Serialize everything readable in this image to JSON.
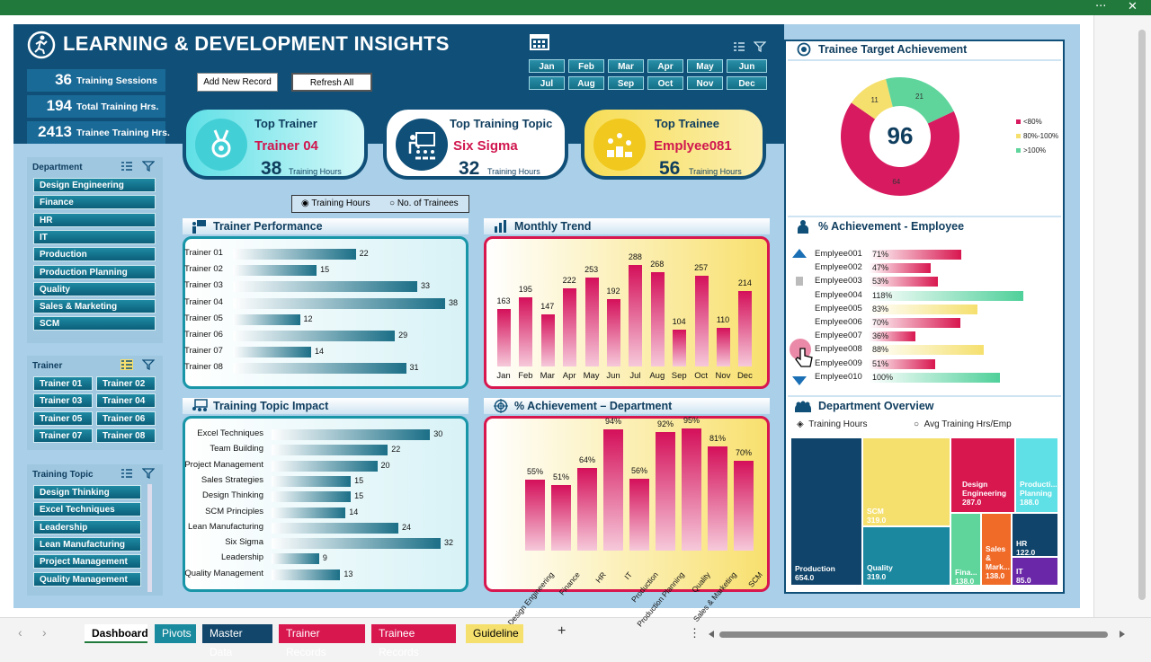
{
  "window": {
    "menu_dots": "···",
    "close": "✕"
  },
  "title": "LEARNING & DEVELOPMENT INSIGHTS",
  "kpis": [
    {
      "value": "36",
      "label": "Training Sessions"
    },
    {
      "value": "194",
      "label": "Total Training Hrs."
    },
    {
      "value": "2413",
      "label": "Trainee Training Hrs."
    }
  ],
  "buttons": {
    "add": "Add New Record",
    "refresh": "Refresh All"
  },
  "months": [
    "Jan",
    "Feb",
    "Mar",
    "Apr",
    "May",
    "Jun",
    "Jul",
    "Aug",
    "Sep",
    "Oct",
    "Nov",
    "Dec"
  ],
  "cards": {
    "trainer": {
      "title": "Top Trainer",
      "name": "Trainer 04",
      "value": "38",
      "unit": "Training Hours"
    },
    "topic": {
      "title": "Top Training Topic",
      "name": "Six Sigma",
      "value": "32",
      "unit": "Training Hours"
    },
    "trainee": {
      "title": "Top Trainee",
      "name": "Emplyee081",
      "value": "56",
      "unit": "Training Hours"
    }
  },
  "toggle": {
    "opt1": "Training Hours",
    "opt2": "No. of Trainees"
  },
  "slicers": {
    "department": {
      "title": "Department",
      "items": [
        "Design Engineering",
        "Finance",
        "HR",
        "IT",
        "Production",
        "Production Planning",
        "Quality",
        "Sales & Marketing",
        "SCM"
      ]
    },
    "trainer": {
      "title": "Trainer",
      "items": [
        "Trainer 01",
        "Trainer 02",
        "Trainer 03",
        "Trainer 04",
        "Trainer 05",
        "Trainer 06",
        "Trainer 07",
        "Trainer 08"
      ]
    },
    "topic": {
      "title": "Training Topic",
      "items": [
        "Design Thinking",
        "Excel Techniques",
        "Leadership",
        "Lean Manufacturing",
        "Project Management",
        "Quality Management"
      ]
    }
  },
  "sections": {
    "trainer_perf": "Trainer Performance",
    "monthly": "Monthly Trend",
    "topic_impact": "Training Topic Impact",
    "dept_ach": "% Achievement – Department",
    "target": "Trainee Target Achievement",
    "emp_ach": "% Achievement - Employee",
    "dept_overview": "Department Overview"
  },
  "chart_data": [
    {
      "type": "bar",
      "orientation": "horizontal",
      "title": "Trainer Performance",
      "categories": [
        "Trainer 01",
        "Trainer 02",
        "Trainer 03",
        "Trainer 04",
        "Trainer 05",
        "Trainer 06",
        "Trainer 07",
        "Trainer 08"
      ],
      "values": [
        22,
        15,
        33,
        38,
        12,
        29,
        14,
        31
      ]
    },
    {
      "type": "bar",
      "title": "Monthly Trend",
      "categories": [
        "Jan",
        "Feb",
        "Mar",
        "Apr",
        "May",
        "Jun",
        "Jul",
        "Aug",
        "Sep",
        "Oct",
        "Nov",
        "Dec"
      ],
      "values": [
        163,
        195,
        147,
        222,
        253,
        192,
        288,
        268,
        104,
        257,
        110,
        214
      ]
    },
    {
      "type": "bar",
      "orientation": "horizontal",
      "title": "Training Topic Impact",
      "categories": [
        "Excel Techniques",
        "Team Building",
        "Project Management",
        "Sales Strategies",
        "Design Thinking",
        "SCM Principles",
        "Lean Manufacturing",
        "Six Sigma",
        "Leadership",
        "Quality Management"
      ],
      "values": [
        30,
        22,
        20,
        15,
        15,
        14,
        24,
        32,
        9,
        13
      ]
    },
    {
      "type": "bar",
      "title": "% Achievement – Department",
      "categories": [
        "Design Engineering",
        "Finance",
        "HR",
        "IT",
        "Production",
        "Production Planning",
        "Quality",
        "Sales & Marketing",
        "SCM"
      ],
      "values": [
        55,
        51,
        64,
        94,
        56,
        92,
        95,
        81,
        70
      ],
      "labels": [
        "55%",
        "51%",
        "64%",
        "94%",
        "56%",
        "92%",
        "95%",
        "81%",
        "70%"
      ]
    },
    {
      "type": "pie",
      "title": "Trainee Target Achievement",
      "center_value": "96",
      "categories": [
        "<80%",
        "80%-100%",
        ">100%"
      ],
      "values": [
        64,
        11,
        21
      ],
      "colors": [
        "#d81b60",
        "#f5e06e",
        "#5fd59c"
      ]
    },
    {
      "type": "bar",
      "orientation": "horizontal",
      "title": "% Achievement - Employee",
      "categories": [
        "Emplyee001",
        "Emplyee002",
        "Emplyee003",
        "Emplyee004",
        "Emplyee005",
        "Emplyee006",
        "Emplyee007",
        "Emplyee008",
        "Emplyee009",
        "Emplyee010"
      ],
      "values": [
        71,
        47,
        53,
        118,
        83,
        70,
        36,
        88,
        51,
        100
      ],
      "labels": [
        "71%",
        "47%",
        "53%",
        "118%",
        "83%",
        "70%",
        "36%",
        "88%",
        "51%",
        "100%"
      ]
    },
    {
      "type": "heatmap",
      "subtype": "treemap",
      "title": "Department Overview",
      "categories": [
        "Production",
        "SCM",
        "Quality",
        "Design Engineering",
        "Production Planning",
        "Finance",
        "Sales & Marketing",
        "HR",
        "IT"
      ],
      "values": [
        654.0,
        319.0,
        319.0,
        287.0,
        188.0,
        138.0,
        138.0,
        122.0,
        85.0
      ]
    }
  ],
  "treemap_labels": [
    {
      "name": "Production",
      "value": "654.0"
    },
    {
      "name": "SCM",
      "value": "319.0"
    },
    {
      "name": "Quality",
      "value": "319.0"
    },
    {
      "name": "Design Engineering",
      "value": "287.0"
    },
    {
      "name": "Producti... Planning",
      "value": "188.0"
    },
    {
      "name": "Fina...",
      "value": "138.0"
    },
    {
      "name": "Sales & Mark...",
      "value": "138.0"
    },
    {
      "name": "HR",
      "value": "122.0"
    },
    {
      "name": "IT",
      "value": "85.0"
    }
  ],
  "dept_toggle": {
    "opt1": "Training Hours",
    "opt2": "Avg Training Hrs/Emp"
  },
  "tabs": [
    "Dashboard",
    "Pivots",
    "Master Data",
    "Trainer Records",
    "Trainee Records",
    "Guideline"
  ],
  "tab_colors": [
    "#ffffff",
    "#1a8a9e",
    "#12476b",
    "#d8174f",
    "#d8174f",
    "#f5e06e"
  ],
  "add_sheet": "+",
  "scroll_sep": "⋮"
}
